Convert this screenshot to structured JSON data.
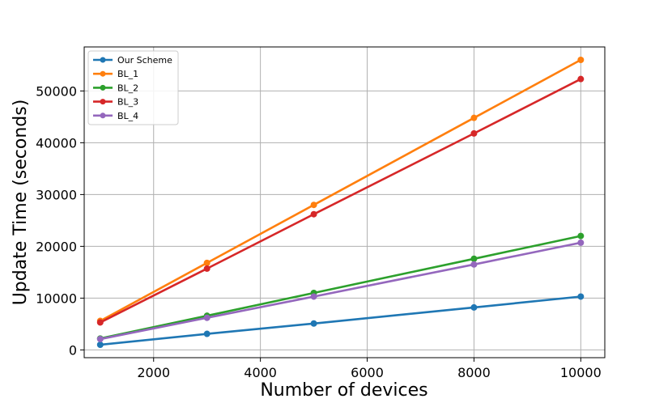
{
  "chart_data": {
    "type": "line",
    "title": "",
    "xlabel": "Number of devices",
    "ylabel": "Update Time (seconds)",
    "x": [
      1000,
      3000,
      5000,
      8000,
      10000
    ],
    "xlim": [
      700,
      10450
    ],
    "ylim": [
      -1500,
      58500
    ],
    "xticks": [
      2000,
      4000,
      6000,
      8000,
      10000
    ],
    "yticks": [
      0,
      10000,
      20000,
      30000,
      40000,
      50000
    ],
    "grid": true,
    "legend_position": "top-left",
    "series": [
      {
        "name": "Our Scheme",
        "color": "#1f77b4",
        "values": [
          1000,
          3100,
          5100,
          8200,
          10300
        ]
      },
      {
        "name": "BL_1",
        "color": "#ff7f0e",
        "values": [
          5600,
          16800,
          28000,
          44800,
          56000
        ]
      },
      {
        "name": "BL_2",
        "color": "#2ca02c",
        "values": [
          2200,
          6600,
          11000,
          17600,
          22000
        ]
      },
      {
        "name": "BL_3",
        "color": "#d62728",
        "values": [
          5300,
          15700,
          26200,
          41800,
          52300
        ]
      },
      {
        "name": "BL_4",
        "color": "#9467bd",
        "values": [
          2100,
          6200,
          10300,
          16500,
          20700
        ]
      }
    ]
  }
}
